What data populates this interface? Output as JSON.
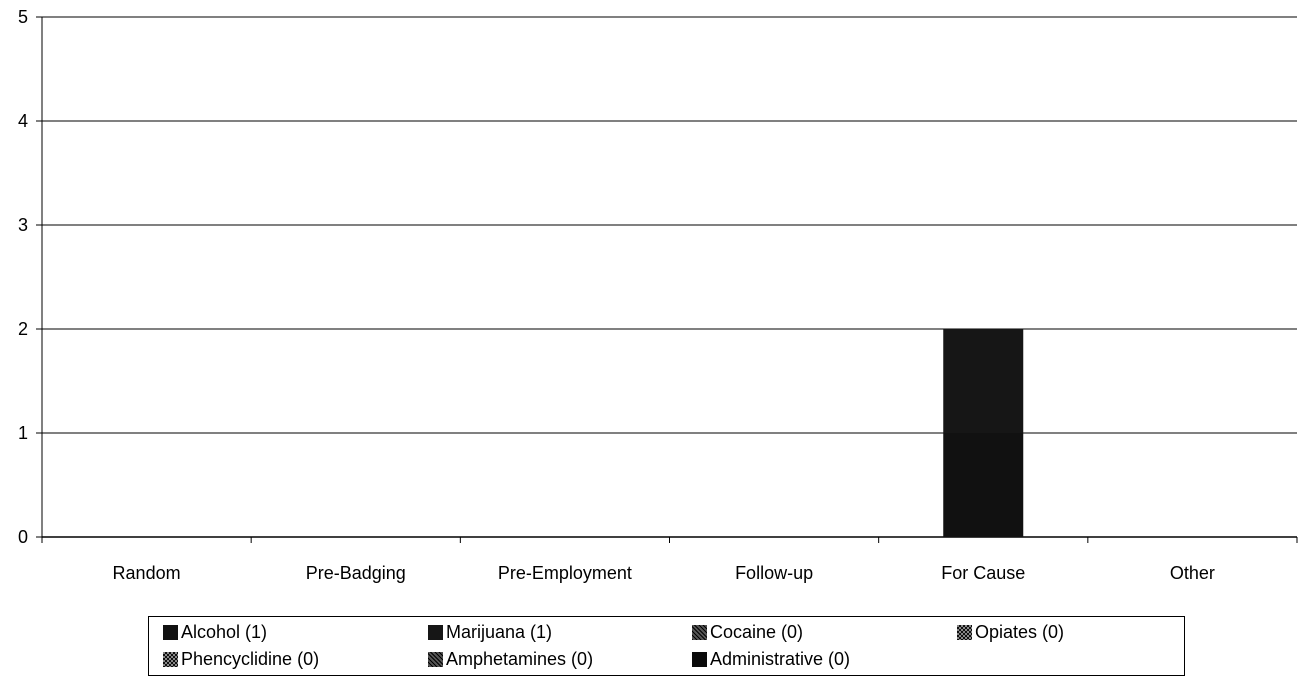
{
  "chart_data": {
    "type": "bar",
    "title": "",
    "xlabel": "",
    "ylabel": "",
    "ylim": [
      0,
      5
    ],
    "yticks": [
      0,
      1,
      2,
      3,
      4,
      5
    ],
    "grid": true,
    "legend_position": "bottom",
    "categories": [
      "Random",
      "Pre-Badging",
      "Pre-Employment",
      "Follow-up",
      "For Cause",
      "Other"
    ],
    "series": [
      {
        "name": "Alcohol (1)",
        "color": "#111111",
        "pattern": "solid",
        "values": [
          0,
          0,
          0,
          0,
          1,
          0
        ]
      },
      {
        "name": "Marijuana (1)",
        "color": "#161616",
        "pattern": "solid",
        "values": [
          0,
          0,
          0,
          0,
          1,
          0
        ]
      },
      {
        "name": "Cocaine (0)",
        "color": "#2a2a2a",
        "pattern": "dotted",
        "values": [
          0,
          0,
          0,
          0,
          0,
          0
        ]
      },
      {
        "name": "Opiates (0)",
        "color": "#3a3a3a",
        "pattern": "checkered",
        "values": [
          0,
          0,
          0,
          0,
          0,
          0
        ]
      },
      {
        "name": "Phencyclidine (0)",
        "color": "#333333",
        "pattern": "checkered",
        "values": [
          0,
          0,
          0,
          0,
          0,
          0
        ]
      },
      {
        "name": "Amphetamines (0)",
        "color": "#222222",
        "pattern": "dotted",
        "values": [
          0,
          0,
          0,
          0,
          0,
          0
        ]
      },
      {
        "name": "Administrative (0)",
        "color": "#0a0a0a",
        "pattern": "solid",
        "values": [
          0,
          0,
          0,
          0,
          0,
          0
        ]
      }
    ]
  }
}
